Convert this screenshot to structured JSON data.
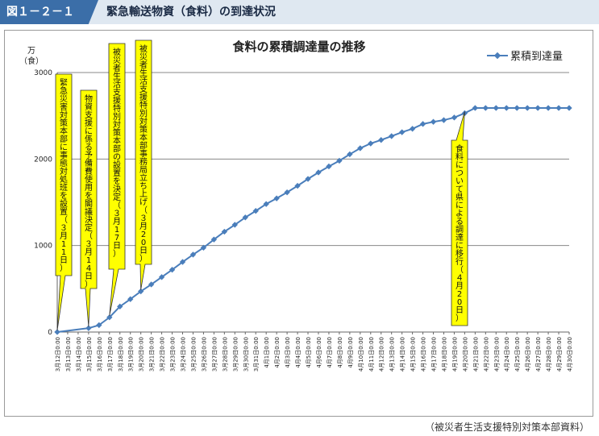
{
  "header": {
    "figure_number": "図１－２－１",
    "title": "緊急輸送物資（食料）の到達状況"
  },
  "source_note": "（被災者生活支援特別対策本部資料）",
  "colors": {
    "series": "#4a7ebb",
    "grid": "#888888",
    "header_badge": "#3b6ea8",
    "header_bg": "#dfe8f1",
    "callout": "#ffff00"
  },
  "chart_data": {
    "type": "line",
    "title": "食料の累積調達量の推移",
    "ylabel": "万（食）",
    "ylim": [
      0,
      3000
    ],
    "yticks": [
      0,
      1000,
      2000,
      3000
    ],
    "grid": true,
    "legend_position": "top-right",
    "x": [
      "3月12日0:00",
      "3月13日0:00",
      "3月14日0:00",
      "3月15日0:00",
      "3月16日0:00",
      "3月17日0:00",
      "3月18日0:00",
      "3月19日0:00",
      "3月20日0:00",
      "3月21日0:00",
      "3月22日0:00",
      "3月23日0:00",
      "3月24日0:00",
      "3月25日0:00",
      "3月26日0:00",
      "3月27日0:00",
      "3月28日0:00",
      "3月29日0:00",
      "3月30日0:00",
      "3月31日0:00",
      "4月1日0:00",
      "4月2日0:00",
      "4月3日0:00",
      "4月4日0:00",
      "4月5日0:00",
      "4月6日0:00",
      "4月7日0:00",
      "4月8日0:00",
      "4月9日0:00",
      "4月10日0:00",
      "4月11日0:00",
      "4月12日0:00",
      "4月13日0:00",
      "4月14日0:00",
      "4月15日0:00",
      "4月16日0:00",
      "4月17日0:00",
      "4月18日0:00",
      "4月19日0:00",
      "4月20日0:00",
      "4月21日0:00",
      "4月22日0:00",
      "4月23日0:00",
      "4月24日0:00",
      "4月25日0:00",
      "4月26日0:00",
      "4月27日0:00",
      "4月28日0:00",
      "4月29日0:00",
      "4月30日0:00"
    ],
    "series": [
      {
        "name": "累積到達量",
        "points": [
          {
            "x": "3月12日0:00",
            "y": 0
          },
          {
            "x": "3月15日0:00",
            "y": 45
          },
          {
            "x": "3月16日0:00",
            "y": 80
          },
          {
            "x": "3月17日0:00",
            "y": 170
          },
          {
            "x": "3月18日0:00",
            "y": 295
          },
          {
            "x": "3月19日0:00",
            "y": 380
          },
          {
            "x": "3月20日0:00",
            "y": 470
          },
          {
            "x": "3月21日0:00",
            "y": 550
          },
          {
            "x": "3月22日0:00",
            "y": 635
          },
          {
            "x": "3月23日0:00",
            "y": 720
          },
          {
            "x": "3月24日0:00",
            "y": 810
          },
          {
            "x": "3月25日0:00",
            "y": 895
          },
          {
            "x": "3月26日0:00",
            "y": 975
          },
          {
            "x": "3月27日0:00",
            "y": 1070
          },
          {
            "x": "3月28日0:00",
            "y": 1160
          },
          {
            "x": "3月29日0:00",
            "y": 1240
          },
          {
            "x": "3月30日0:00",
            "y": 1325
          },
          {
            "x": "3月31日0:00",
            "y": 1400
          },
          {
            "x": "4月1日0:00",
            "y": 1480
          },
          {
            "x": "4月2日0:00",
            "y": 1545
          },
          {
            "x": "4月3日0:00",
            "y": 1615
          },
          {
            "x": "4月4日0:00",
            "y": 1690
          },
          {
            "x": "4月5日0:00",
            "y": 1770
          },
          {
            "x": "4月6日0:00",
            "y": 1845
          },
          {
            "x": "4月7日0:00",
            "y": 1915
          },
          {
            "x": "4月8日0:00",
            "y": 1980
          },
          {
            "x": "4月9日0:00",
            "y": 2055
          },
          {
            "x": "4月10日0:00",
            "y": 2125
          },
          {
            "x": "4月11日0:00",
            "y": 2180
          },
          {
            "x": "4月12日0:00",
            "y": 2220
          },
          {
            "x": "4月13日0:00",
            "y": 2265
          },
          {
            "x": "4月14日0:00",
            "y": 2310
          },
          {
            "x": "4月15日0:00",
            "y": 2350
          },
          {
            "x": "4月16日0:00",
            "y": 2405
          },
          {
            "x": "4月17日0:00",
            "y": 2430
          },
          {
            "x": "4月18日0:00",
            "y": 2450
          },
          {
            "x": "4月19日0:00",
            "y": 2480
          },
          {
            "x": "4月20日0:00",
            "y": 2530
          },
          {
            "x": "4月21日0:00",
            "y": 2590
          },
          {
            "x": "4月22日0:00",
            "y": 2590
          },
          {
            "x": "4月23日0:00",
            "y": 2590
          },
          {
            "x": "4月24日0:00",
            "y": 2590
          },
          {
            "x": "4月25日0:00",
            "y": 2590
          },
          {
            "x": "4月26日0:00",
            "y": 2590
          },
          {
            "x": "4月27日0:00",
            "y": 2590
          },
          {
            "x": "4月28日0:00",
            "y": 2590
          },
          {
            "x": "4月29日0:00",
            "y": 2590
          },
          {
            "x": "4月30日0:00",
            "y": 2590
          }
        ]
      }
    ],
    "annotations": [
      {
        "text": "緊急災害対策本部に事態対処班を設置（３月11日）",
        "x": "3月12日0:00"
      },
      {
        "text": "物資支援に係る予備費使用を閣議決定（３月14日）",
        "x": "3月15日0:00"
      },
      {
        "text": "被災者生活支援特別対策本部の設置を決定（３月17日）",
        "x": "3月17日0:00"
      },
      {
        "text": "被災者生活支援特別対策本部事務局立ち上げ（３月20日）",
        "x": "3月20日0:00"
      },
      {
        "text": "食料について県による調達に移行（４月20日）",
        "x": "4月20日0:00"
      }
    ]
  }
}
